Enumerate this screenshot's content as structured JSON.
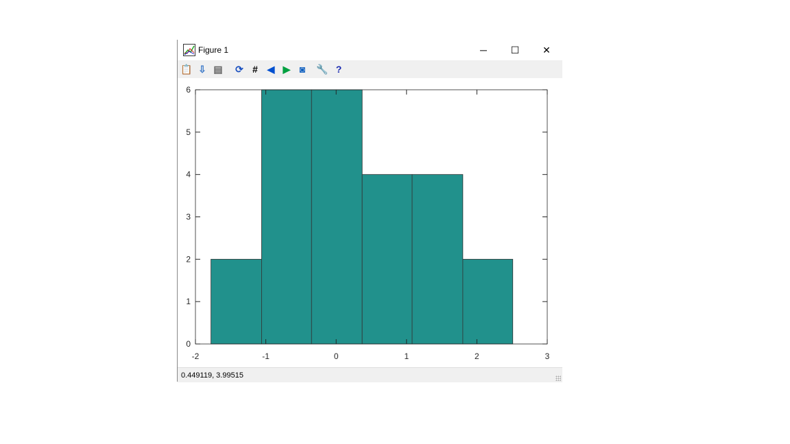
{
  "window": {
    "title": "Figure 1",
    "minimize": "─",
    "maximize": "☐",
    "close": "✕"
  },
  "toolbar": [
    {
      "name": "copy-clipboard-icon",
      "glyph": "📋",
      "color": "#c8a060"
    },
    {
      "name": "save-icon",
      "glyph": "⇩",
      "color": "#3a78c8"
    },
    {
      "name": "print-icon",
      "glyph": "▤",
      "color": "#666"
    },
    {
      "name": "refresh-icon",
      "glyph": "⟳",
      "color": "#1a50c0"
    },
    {
      "name": "grid-icon",
      "glyph": "#",
      "color": "#000"
    },
    {
      "name": "zoom-out-icon",
      "glyph": "◀",
      "color": "#0050d0"
    },
    {
      "name": "zoom-in-icon",
      "glyph": "▶",
      "color": "#00a040"
    },
    {
      "name": "autoscale-icon",
      "glyph": "◙",
      "color": "#1060c0"
    },
    {
      "name": "settings-wrench-icon",
      "glyph": "🔧",
      "color": "#e0a000"
    },
    {
      "name": "help-icon",
      "glyph": "?",
      "color": "#1a2ab0"
    }
  ],
  "status": {
    "coords": "0.449119,  3.99515"
  },
  "chart_data": {
    "type": "bar",
    "style": "histogram",
    "bin_edges": [
      -1.78,
      -1.06,
      -0.35,
      0.37,
      1.08,
      1.8,
      2.51
    ],
    "values": [
      2,
      6,
      6,
      4,
      4,
      2
    ],
    "xlim": [
      -2,
      3
    ],
    "ylim": [
      0,
      6
    ],
    "xticks": [
      "-2",
      "-1",
      "0",
      "1",
      "2",
      "3"
    ],
    "yticks": [
      "0",
      "1",
      "2",
      "3",
      "4",
      "5",
      "6"
    ],
    "bar_color": "#21918c",
    "edge_color": "#333333",
    "grid": false
  }
}
